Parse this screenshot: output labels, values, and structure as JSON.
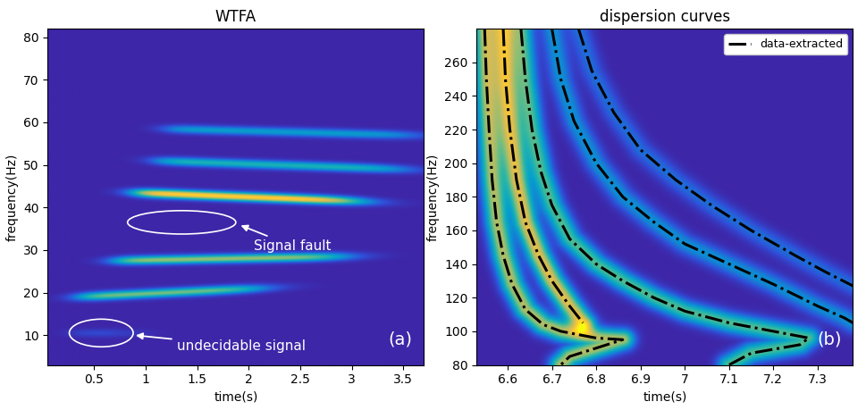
{
  "chart_data": [
    {
      "type": "heatmap",
      "title": "WTFA",
      "x_label": "time(s)",
      "y_label": "frequency(Hz)",
      "xlim": [
        0.05,
        3.7
      ],
      "xticks": [
        0.5,
        1,
        1.5,
        2,
        2.5,
        3,
        3.5
      ],
      "ylim": [
        3,
        82
      ],
      "yticks": [
        10,
        20,
        30,
        40,
        50,
        60,
        70,
        80
      ],
      "ridges": [
        {
          "t_start": 0.3,
          "t_end": 0.85,
          "f_start": 10.5,
          "f_end": 10.5,
          "intensity": 0.12
        },
        {
          "t_start": 0.35,
          "t_end": 2.1,
          "f_start": 19.0,
          "f_end": 21.0,
          "intensity": 0.6
        },
        {
          "t_start": 0.7,
          "t_end": 2.9,
          "f_start": 27.5,
          "f_end": 28.5,
          "intensity": 0.65
        },
        {
          "t_start": 0.9,
          "t_end": 3.05,
          "f_start": 43.5,
          "f_end": 41.5,
          "intensity": 0.9
        },
        {
          "t_start": 1.1,
          "t_end": 3.5,
          "f_start": 51.0,
          "f_end": 49.0,
          "intensity": 0.45
        },
        {
          "t_start": 1.2,
          "t_end": 3.6,
          "f_start": 58.5,
          "f_end": 57.0,
          "intensity": 0.35
        }
      ],
      "annotations": [
        {
          "text": "Signal fault"
        },
        {
          "text": "undecidable signal"
        }
      ],
      "panel_label": "(a)",
      "tick_labels": true,
      "grid": false
    },
    {
      "type": "heatmap",
      "title": "dispersion curves",
      "x_label": "time(s)",
      "y_label": "frequency(Hz)",
      "xlim": [
        6.53,
        7.38
      ],
      "xticks": [
        6.6,
        6.7,
        6.8,
        6.9,
        7,
        7.1,
        7.2,
        7.3
      ],
      "ylim": [
        80,
        280
      ],
      "yticks": [
        80,
        100,
        120,
        140,
        160,
        180,
        200,
        220,
        240,
        260
      ],
      "legend": "upper right",
      "series": [
        {
          "name": "data-extracted",
          "color": "#000000",
          "line_style": "dashdot",
          "curves": [
            {
              "intensity": 0.7,
              "x": [
                6.548,
                6.552,
                6.558,
                6.565,
                6.575,
                6.59,
                6.61,
                6.64,
                6.68,
                6.72,
                6.76,
                6.8,
                6.86,
                6.8,
                6.74,
                6.72
              ],
              "values": [
                280,
                250,
                220,
                190,
                165,
                145,
                128,
                113,
                104,
                100,
                98,
                96,
                95,
                90,
                85,
                80
              ]
            },
            {
              "intensity": 0.8,
              "x": [
                6.59,
                6.595,
                6.605,
                6.62,
                6.64,
                6.67,
                6.7,
                6.74,
                6.77
              ],
              "values": [
                280,
                250,
                220,
                190,
                165,
                145,
                130,
                115,
                105
              ]
            },
            {
              "intensity": 0.55,
              "x": [
                6.63,
                6.64,
                6.655,
                6.675,
                6.7,
                6.74,
                6.8,
                6.86,
                6.93,
                7.0,
                7.1,
                7.2,
                7.28,
                7.26,
                7.15,
                7.1
              ],
              "values": [
                280,
                250,
                220,
                195,
                175,
                155,
                140,
                130,
                120,
                112,
                105,
                100,
                96,
                92,
                87,
                80
              ]
            },
            {
              "intensity": 0.3,
              "x": [
                6.7,
                6.72,
                6.75,
                6.8,
                6.86,
                6.93,
                7.0,
                7.1,
                7.2,
                7.3,
                7.36,
                7.38
              ],
              "values": [
                280,
                250,
                225,
                200,
                180,
                165,
                152,
                140,
                128,
                115,
                108,
                105
              ]
            },
            {
              "intensity": 0.2,
              "x": [
                6.76,
                6.79,
                6.84,
                6.9,
                6.98,
                7.06,
                7.15,
                7.25,
                7.32,
                7.38
              ],
              "values": [
                280,
                255,
                230,
                208,
                190,
                175,
                160,
                145,
                135,
                127
              ]
            }
          ]
        }
      ],
      "panel_label": "(b)",
      "tick_labels": true,
      "grid": false
    }
  ]
}
